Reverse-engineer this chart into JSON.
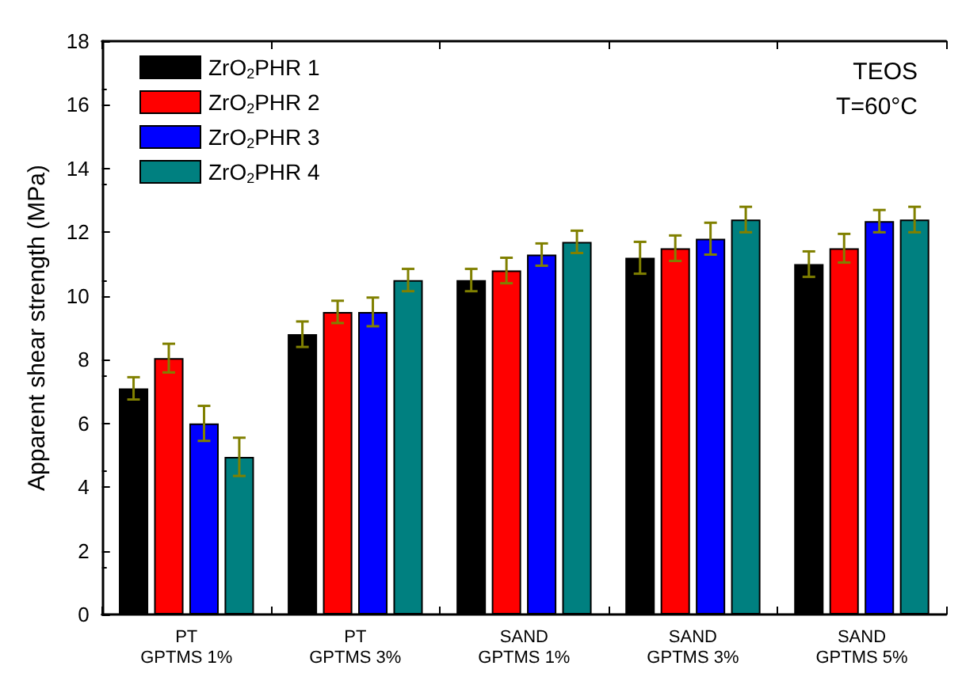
{
  "chart_data": {
    "type": "bar",
    "ylabel": "Apparent shear strength (MPa)",
    "categories": [
      "PT\nGPTMS 1%",
      "PT\nGPTMS 3%",
      "SAND\nGPTMS 1%",
      "SAND\nGPTMS 3%",
      "SAND\nGPTMS 5%"
    ],
    "series": [
      {
        "name": "ZrO$_{2}$PHR 1",
        "color": "#000000",
        "values": [
          7.1,
          8.8,
          10.5,
          11.2,
          11.0
        ],
        "errors": [
          0.35,
          0.4,
          0.35,
          0.5,
          0.4
        ]
      },
      {
        "name": "ZrO$_{2}$PHR 2",
        "color": "#ff0000",
        "values": [
          8.05,
          9.5,
          10.8,
          11.5,
          11.5
        ],
        "errors": [
          0.45,
          0.35,
          0.4,
          0.4,
          0.45
        ]
      },
      {
        "name": "ZrO$_{2}$PHR 3",
        "color": "#0000ff",
        "values": [
          6.0,
          9.5,
          11.3,
          11.8,
          12.35
        ],
        "errors": [
          0.55,
          0.45,
          0.35,
          0.5,
          0.35
        ]
      },
      {
        "name": "ZrO$_{2}$PHR 4",
        "color": "#008080",
        "values": [
          4.95,
          10.5,
          11.7,
          12.4,
          12.4
        ],
        "errors": [
          0.6,
          0.35,
          0.35,
          0.4,
          0.4
        ]
      }
    ],
    "ylim": [
      0,
      18
    ],
    "yticks": [
      0,
      2,
      4,
      6,
      8,
      10,
      12,
      14,
      16,
      18
    ],
    "legend": "top left",
    "grid": false,
    "annotations": [
      "TEOS",
      "T=60°C"
    ]
  }
}
